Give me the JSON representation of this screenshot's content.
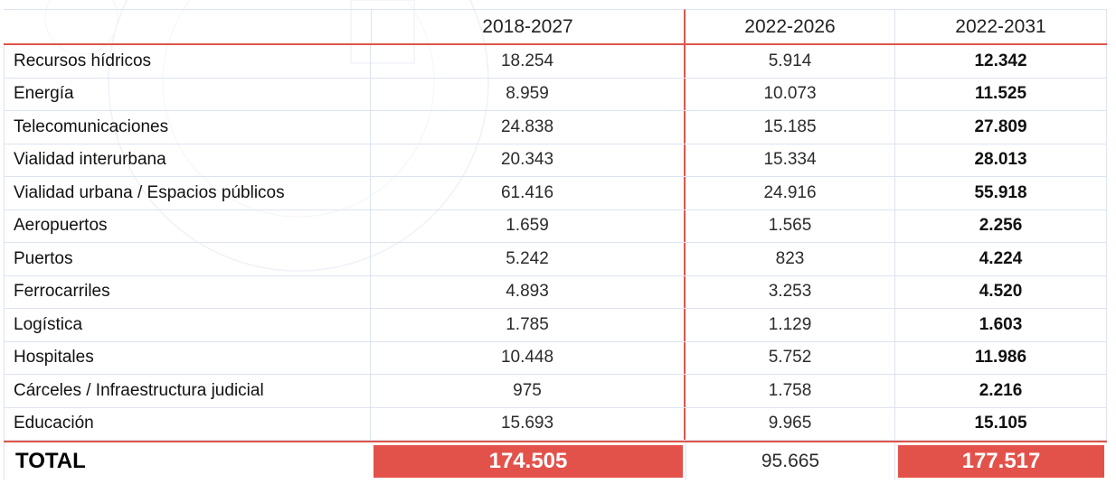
{
  "header": {
    "label_col": "",
    "col_a": "2018-2027",
    "col_b": "2022-2026",
    "col_c": "2022-2031"
  },
  "rows": [
    {
      "label": "Recursos hídricos",
      "a": "18.254",
      "b": "5.914",
      "c": "12.342"
    },
    {
      "label": "Energía",
      "a": "8.959",
      "b": "10.073",
      "c": "11.525"
    },
    {
      "label": "Telecomunicaciones",
      "a": "24.838",
      "b": "15.185",
      "c": "27.809"
    },
    {
      "label": "Vialidad interurbana",
      "a": "20.343",
      "b": "15.334",
      "c": "28.013"
    },
    {
      "label": "Vialidad urbana / Espacios públicos",
      "a": "61.416",
      "b": "24.916",
      "c": "55.918"
    },
    {
      "label": "Aeropuertos",
      "a": "1.659",
      "b": "1.565",
      "c": "2.256"
    },
    {
      "label": "Puertos",
      "a": "5.242",
      "b": "823",
      "c": "4.224"
    },
    {
      "label": "Ferrocarriles",
      "a": "4.893",
      "b": "3.253",
      "c": "4.520"
    },
    {
      "label": "Logística",
      "a": "1.785",
      "b": "1.129",
      "c": "1.603"
    },
    {
      "label": "Hospitales",
      "a": "10.448",
      "b": "5.752",
      "c": "11.986"
    },
    {
      "label": "Cárceles / Infraestructura judicial",
      "a": "975",
      "b": "1.758",
      "c": "2.216"
    },
    {
      "label": "Educación",
      "a": "15.693",
      "b": "9.965",
      "c": "15.105"
    }
  ],
  "total": {
    "label": "TOTAL",
    "a": "174.505",
    "b": "95.665",
    "c": "177.517"
  },
  "colors": {
    "accent": "#e3524a",
    "grid": "#dde3ef"
  }
}
